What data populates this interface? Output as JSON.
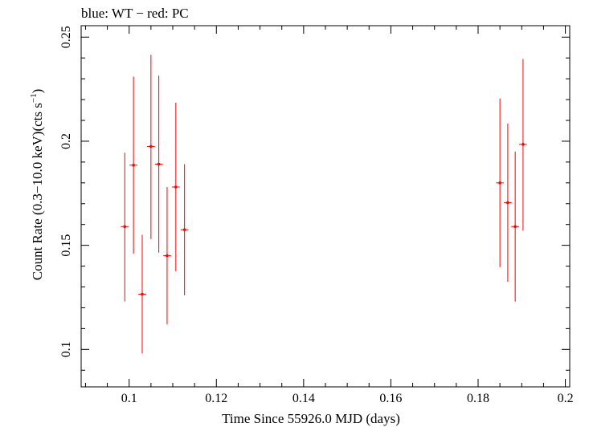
{
  "chart_data": {
    "type": "scatter",
    "title": "blue: WT − red: PC",
    "xlabel": "Time Since 55926.0 MJD (days)",
    "ylabel_main": "Count Rate (0.3−10.0 keV)(cts s",
    "ylabel_sup": "−1",
    "ylabel_close": ")",
    "xlim": [
      0.089,
      0.201
    ],
    "ylim": [
      0.082,
      0.2555
    ],
    "x_ticks": [
      0.1,
      0.12,
      0.14,
      0.16,
      0.18,
      0.2
    ],
    "x_tick_labels": [
      "0.1",
      "0.12",
      "0.14",
      "0.16",
      "0.18",
      "0.2"
    ],
    "y_ticks": [
      0.1,
      0.15,
      0.2,
      0.25
    ],
    "y_tick_labels": [
      "0.1",
      "0.15",
      "0.2",
      "0.25"
    ],
    "grid": false,
    "series": [
      {
        "color": "#ff0000",
        "points": [
          {
            "x": 0.099,
            "y": 0.159,
            "xerr": 0.0009,
            "ylo": 0.123,
            "yhi": 0.1945
          },
          {
            "x": 0.101,
            "y": 0.1885,
            "xerr": 0.0009,
            "ylo": 0.146,
            "yhi": 0.231
          },
          {
            "x": 0.103,
            "y": 0.1265,
            "xerr": 0.0009,
            "ylo": 0.098,
            "yhi": 0.155
          },
          {
            "x": 0.105,
            "y": 0.1975,
            "xerr": 0.0009,
            "ylo": 0.153,
            "yhi": 0.2415
          },
          {
            "x": 0.1068,
            "y": 0.189,
            "xerr": 0.0009,
            "ylo": 0.1465,
            "yhi": 0.2315
          },
          {
            "x": 0.1087,
            "y": 0.145,
            "xerr": 0.0009,
            "ylo": 0.112,
            "yhi": 0.178
          },
          {
            "x": 0.1107,
            "y": 0.178,
            "xerr": 0.0009,
            "ylo": 0.1375,
            "yhi": 0.2185
          },
          {
            "x": 0.1127,
            "y": 0.1575,
            "xerr": 0.0009,
            "ylo": 0.126,
            "yhi": 0.189
          },
          {
            "x": 0.185,
            "y": 0.18,
            "xerr": 0.0009,
            "ylo": 0.1395,
            "yhi": 0.2205
          },
          {
            "x": 0.1868,
            "y": 0.1705,
            "xerr": 0.0009,
            "ylo": 0.1325,
            "yhi": 0.2085
          },
          {
            "x": 0.1885,
            "y": 0.159,
            "xerr": 0.0009,
            "ylo": 0.123,
            "yhi": 0.195
          },
          {
            "x": 0.1903,
            "y": 0.1985,
            "xerr": 0.0009,
            "ylo": 0.157,
            "yhi": 0.2395
          }
        ]
      }
    ]
  }
}
